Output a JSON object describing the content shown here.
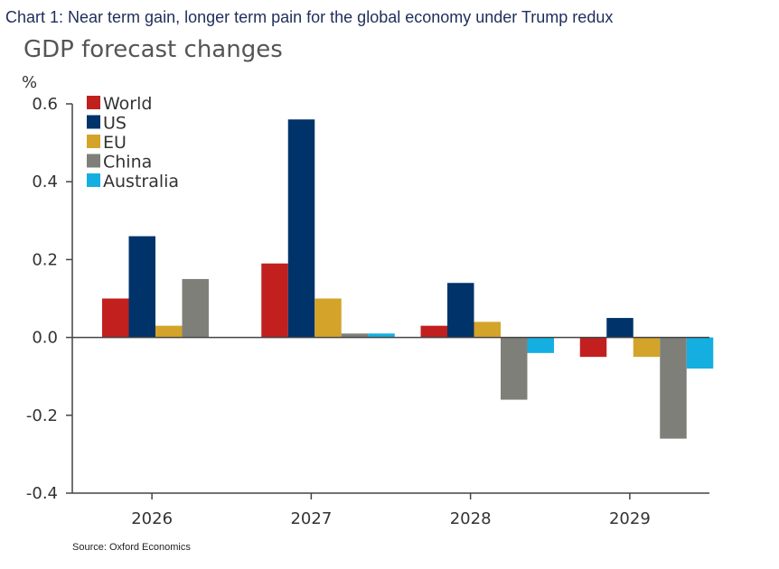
{
  "page": {
    "heading": "Chart 1: Near term gain, longer term pain for the global economy under Trump redux"
  },
  "chart_data": {
    "type": "bar",
    "title": "GDP forecast changes",
    "unit_label": "%",
    "xlabel": "",
    "ylabel": "%",
    "ylim": [
      -0.4,
      0.6
    ],
    "yticks": [
      "0.6",
      "0.4",
      "0.2",
      "0.0",
      "-0.2",
      "-0.4"
    ],
    "ytick_values": [
      0.6,
      0.4,
      0.2,
      0.0,
      -0.2,
      -0.4
    ],
    "categories": [
      "2026",
      "2027",
      "2028",
      "2029"
    ],
    "series": [
      {
        "name": "World",
        "color": "#c1201f",
        "values": [
          0.1,
          0.19,
          0.03,
          -0.05
        ]
      },
      {
        "name": "US",
        "color": "#00336a",
        "values": [
          0.26,
          0.56,
          0.14,
          0.05
        ]
      },
      {
        "name": "EU",
        "color": "#d4a32a",
        "values": [
          0.03,
          0.1,
          0.04,
          -0.05
        ]
      },
      {
        "name": "China",
        "color": "#7f7f7a",
        "values": [
          0.15,
          0.01,
          -0.16,
          -0.26
        ]
      },
      {
        "name": "Australia",
        "color": "#14afe0",
        "values": [
          0.0,
          0.01,
          -0.04,
          -0.08
        ]
      }
    ],
    "legend_position": "top-left",
    "grid": false,
    "source": "Source: Oxford Economics"
  }
}
